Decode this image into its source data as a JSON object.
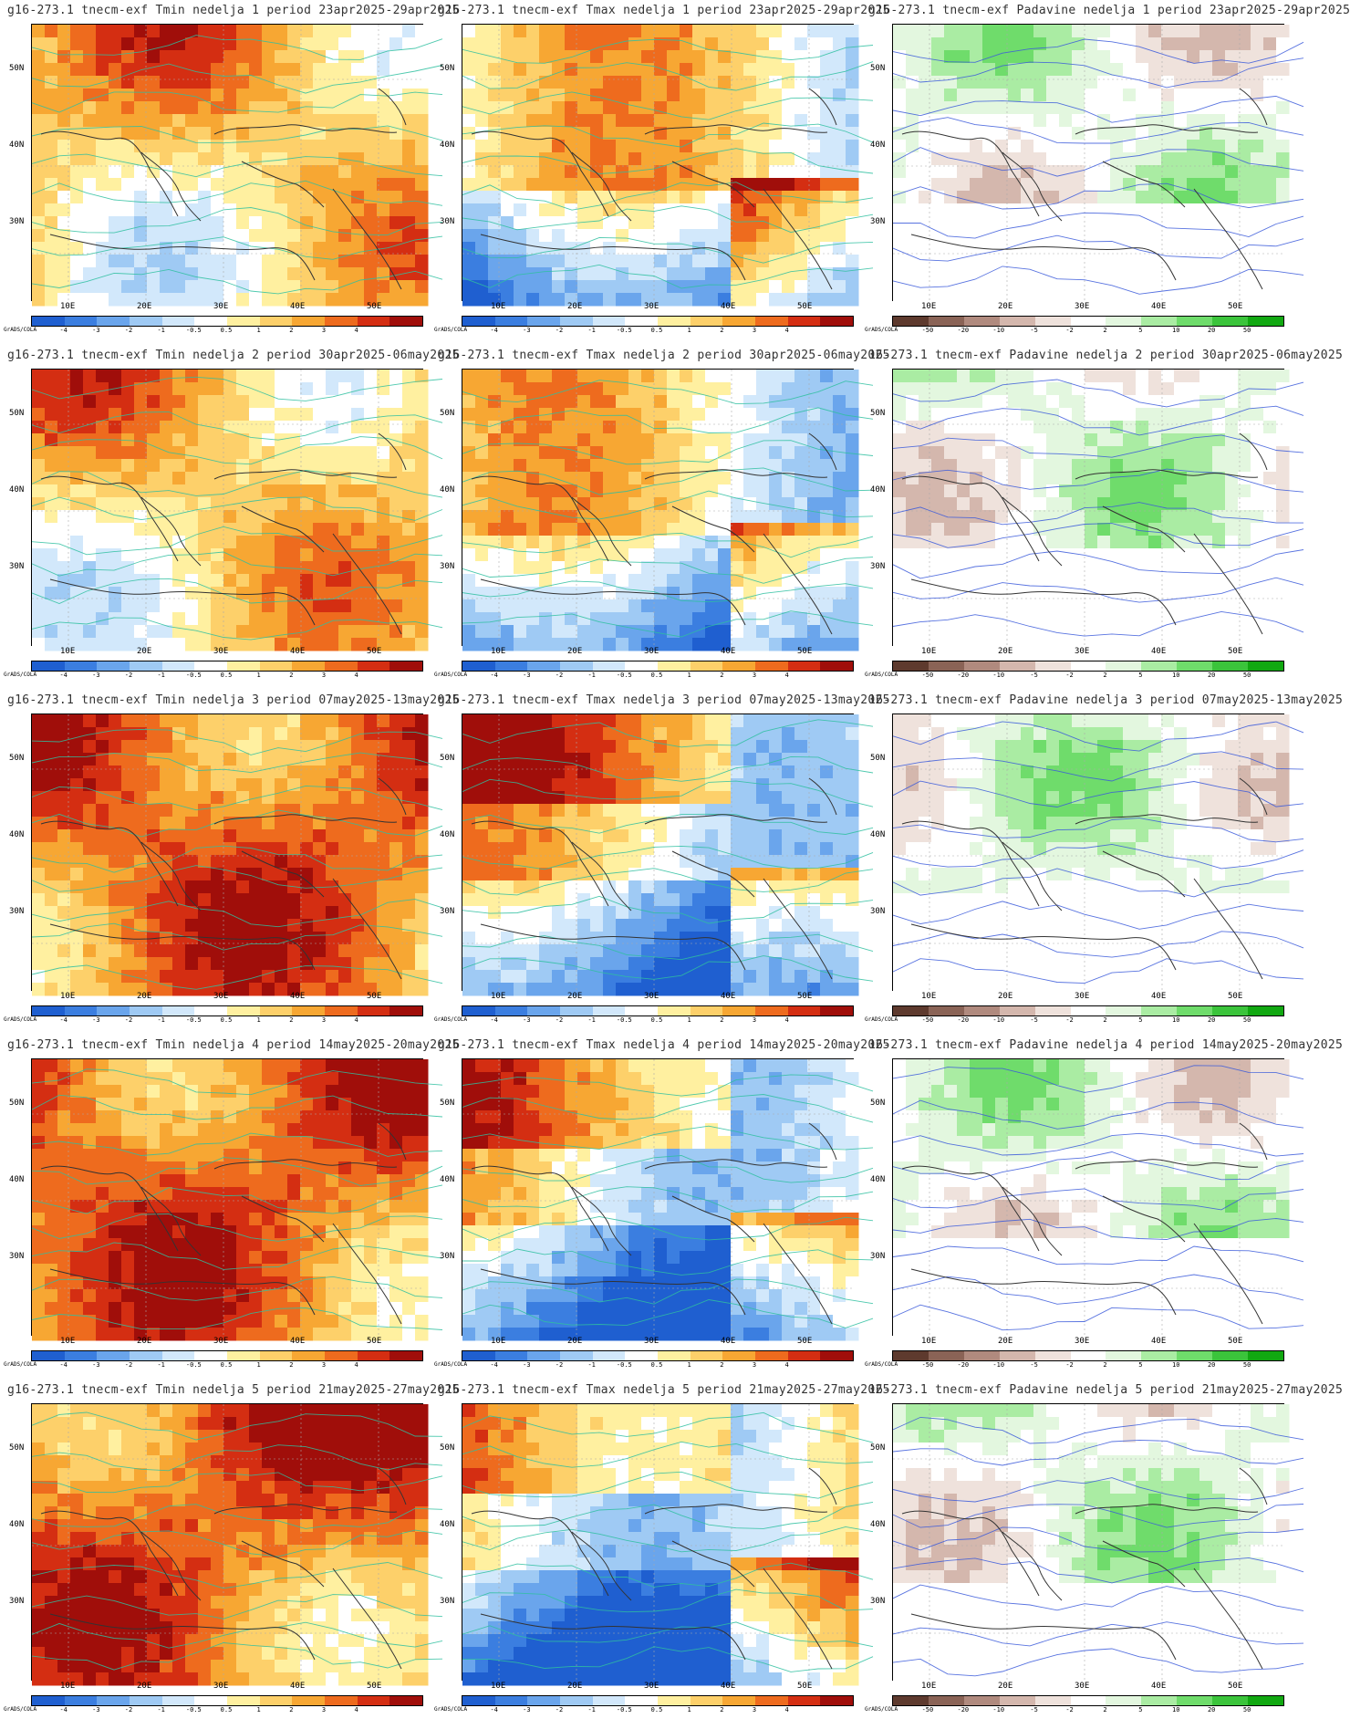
{
  "domain": "Map",
  "model_code": "g16-273.1 tnecm-exf",
  "lat_labels": [
    "50N",
    "40N",
    "30N"
  ],
  "lon_labels": [
    "10E",
    "20E",
    "30E",
    "40E",
    "50E"
  ],
  "watermark": "GrADS/COLA",
  "temp_scale": {
    "labels": [
      "-4",
      "-3",
      "-2",
      "-1",
      "-0.5",
      "0.5",
      "1",
      "2",
      "3",
      "4"
    ],
    "colors": [
      "#1f5fd0",
      "#3b7ee0",
      "#6aa5ec",
      "#9fcaf4",
      "#d2e8fb",
      "#ffffff",
      "#fff0a0",
      "#fdd06a",
      "#f7a733",
      "#ee6b1e",
      "#d42e12",
      "#a00e0a"
    ]
  },
  "precip_scale": {
    "labels": [
      "-50",
      "-20",
      "-10",
      "-5",
      "-2",
      "2",
      "5",
      "10",
      "20",
      "50"
    ],
    "colors": [
      "#5e3a2e",
      "#8a6356",
      "#b08a7e",
      "#d4b7ad",
      "#efe2dc",
      "#ffffff",
      "#e3f7df",
      "#aaeca3",
      "#6fdc6b",
      "#3bc43b",
      "#11a811"
    ]
  },
  "panels": [
    {
      "title": "g16-273.1 tnecm-exf Tmin nedelja 1 period 23apr2025-29apr2025",
      "type": "tmin"
    },
    {
      "title": "g16-273.1 tnecm-exf Tmax nedelja 1 period 23apr2025-29apr2025",
      "type": "tmax"
    },
    {
      "title": "g16-273.1 tnecm-exf Padavine nedelja 1 period 23apr2025-29apr2025",
      "type": "precip"
    },
    {
      "title": "g16-273.1 tnecm-exf Tmin nedelja 2 period 30apr2025-06may2025",
      "type": "tmin"
    },
    {
      "title": "g16-273.1 tnecm-exf Tmax nedelja 2 period 30apr2025-06may2025",
      "type": "tmax"
    },
    {
      "title": "16-273.1 tnecm-exf Padavine nedelja 2 period 30apr2025-06may2025",
      "type": "precip"
    },
    {
      "title": "g16-273.1 tnecm-exf Tmin nedelja 3 period 07may2025-13may2025",
      "type": "tmin"
    },
    {
      "title": "g16-273.1 tnecm-exf Tmax nedelja 3 period 07may2025-13may2025",
      "type": "tmax"
    },
    {
      "title": "16-273.1 tnecm-exf Padavine nedelja 3 period 07may2025-13may2025",
      "type": "precip"
    },
    {
      "title": "g16-273.1 tnecm-exf Tmin nedelja 4 period 14may2025-20may2025",
      "type": "tmin"
    },
    {
      "title": "g16-273.1 tnecm-exf Tmax nedelja 4 period 14may2025-20may2025",
      "type": "tmax"
    },
    {
      "title": "16-273.1 tnecm-exf Padavine nedelja 4 period 14may2025-20may2025",
      "type": "precip"
    },
    {
      "title": "g16-273.1 tnecm-exf Tmin nedelja 5 period 21may2025-27may2025",
      "type": "tmin"
    },
    {
      "title": "g16-273.1 tnecm-exf Tmax nedelja 5 period 21may2025-27may2025",
      "type": "tmax"
    },
    {
      "title": "16-273.1 tnecm-exf Padavine nedelja 5 period 21may2025-27may2025",
      "type": "precip"
    }
  ]
}
